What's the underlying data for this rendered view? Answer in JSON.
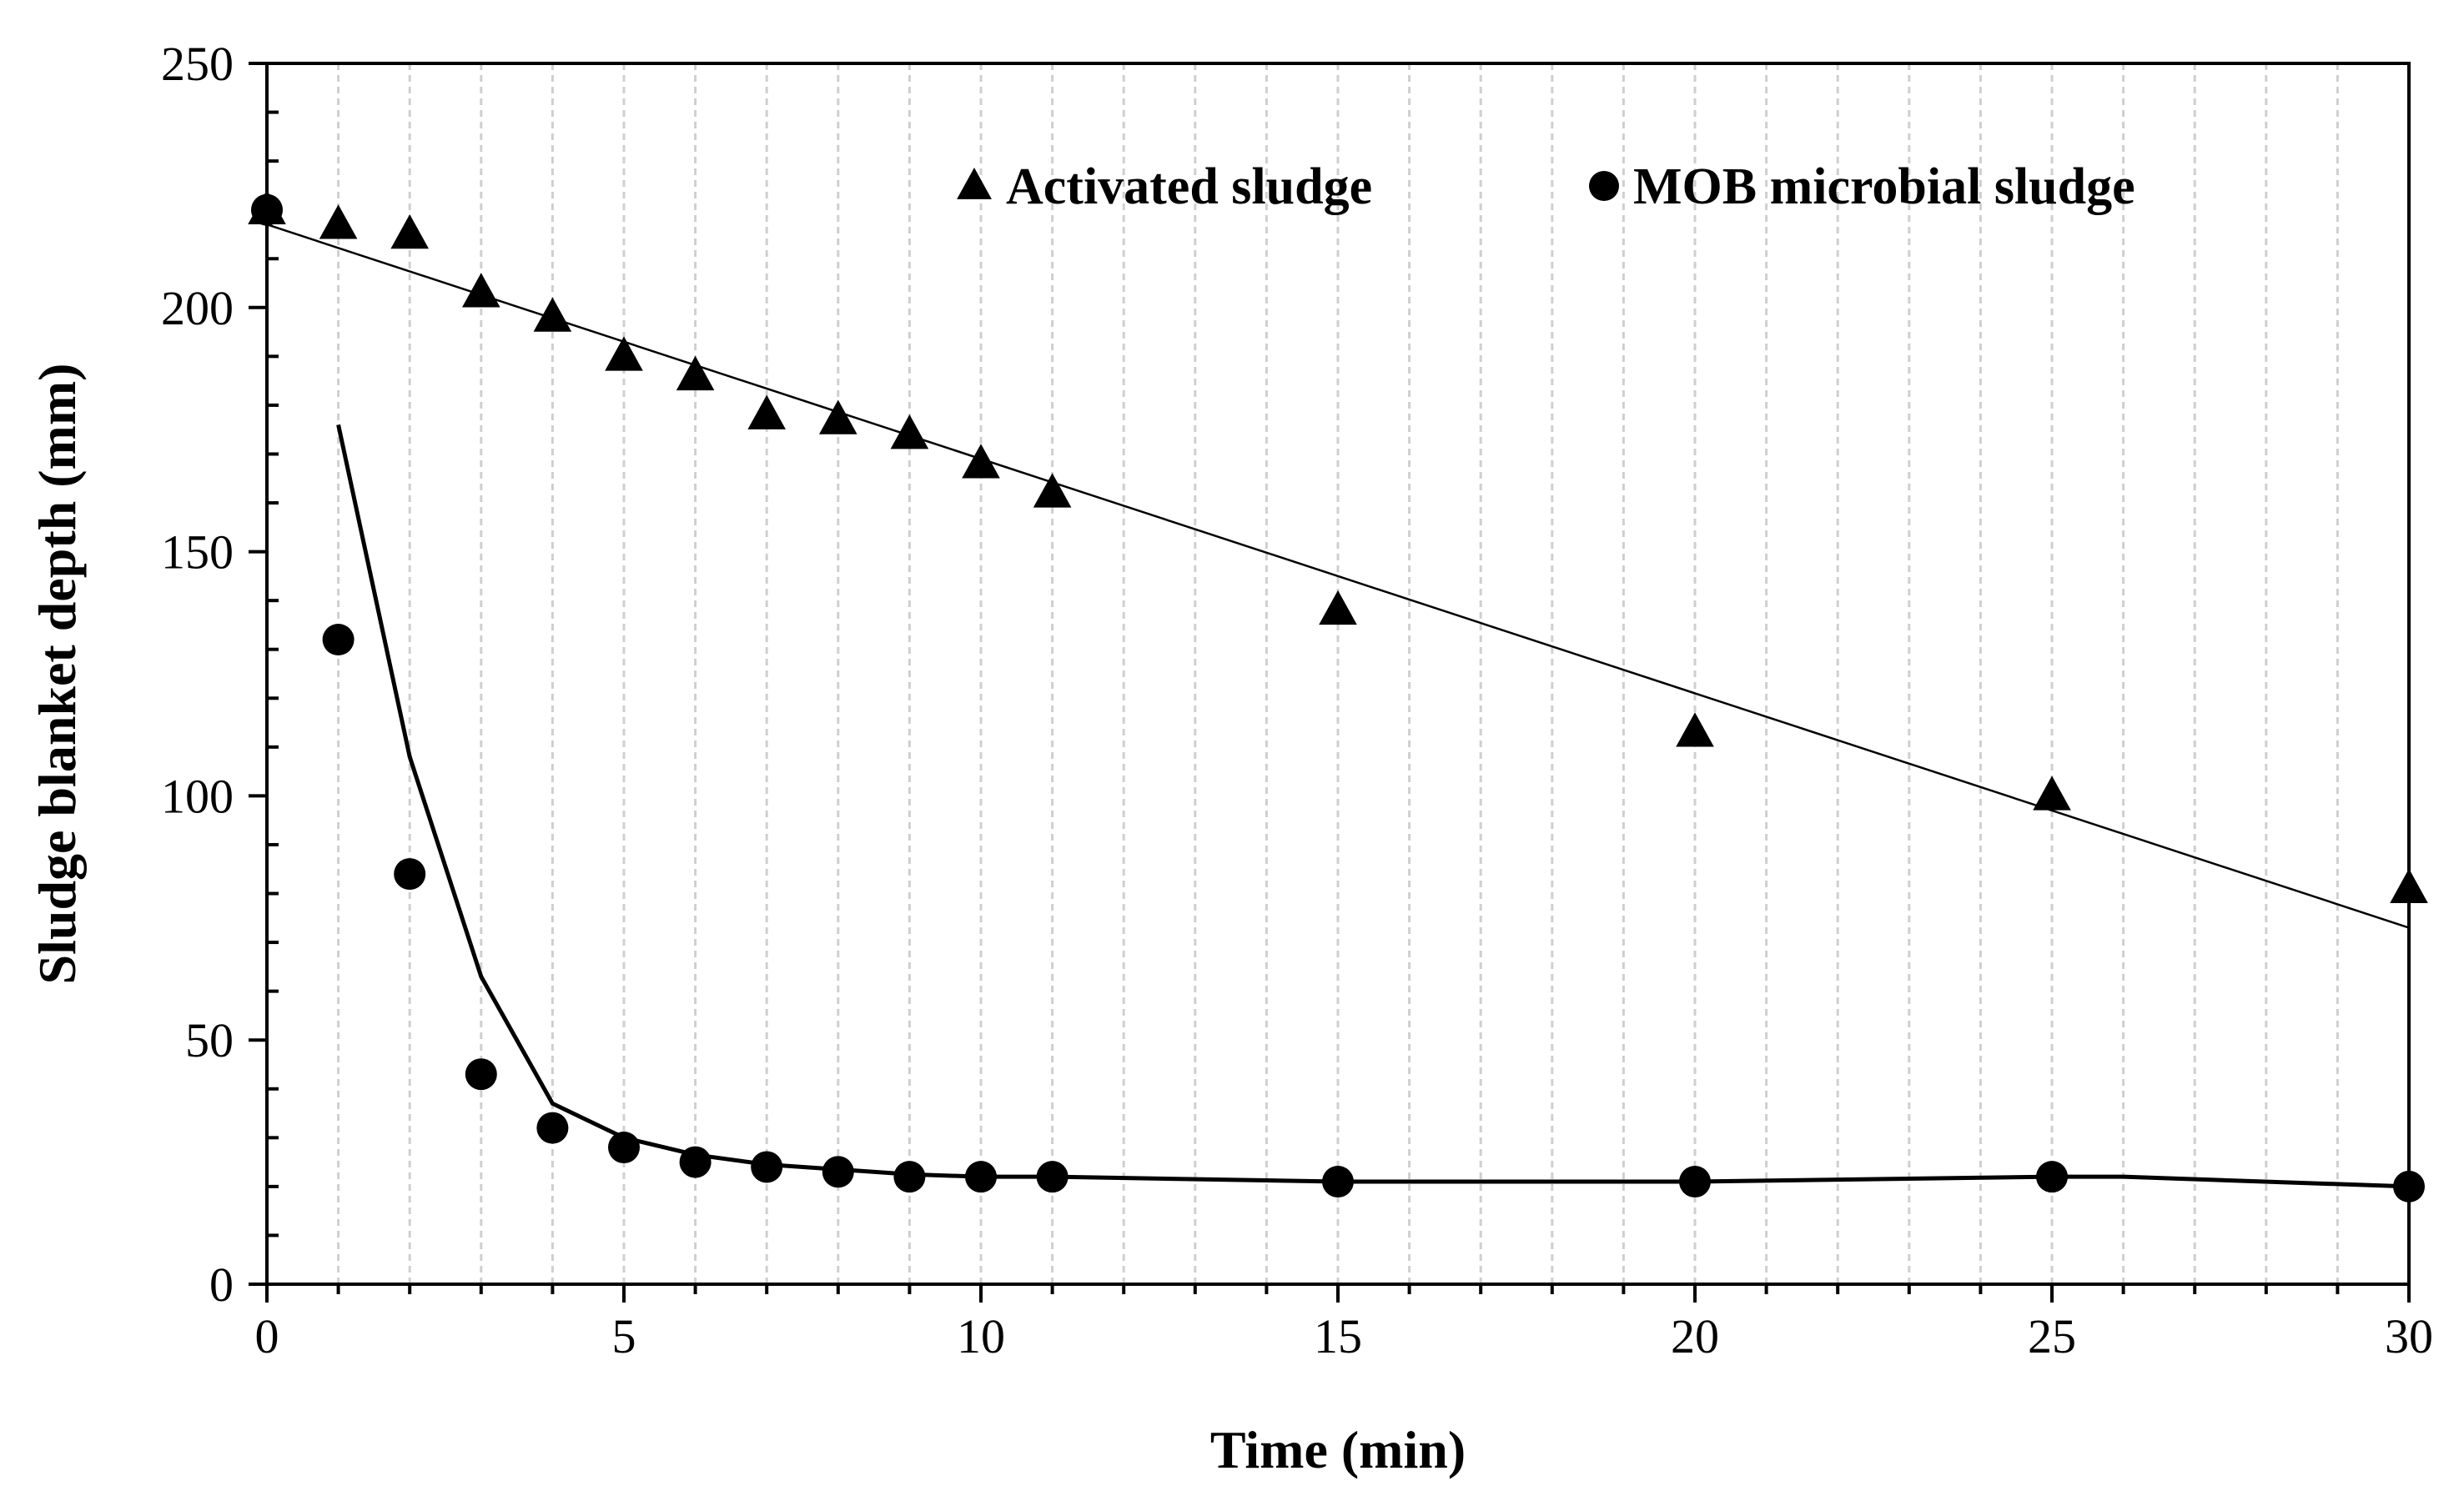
{
  "chart_data": {
    "type": "scatter",
    "title": "",
    "xlabel": "Time (min)",
    "ylabel": "Sludge blanket depth (mm)",
    "xlim": [
      0,
      30
    ],
    "ylim": [
      0,
      250
    ],
    "x_ticks": [
      0,
      5,
      10,
      15,
      20,
      25,
      30
    ],
    "y_ticks": [
      0,
      50,
      100,
      150,
      200,
      250
    ],
    "vertical_grid": "light grey dashed lines at every 1 min",
    "legend_position": "top-right",
    "series": [
      {
        "name": "Activated sludge",
        "marker": "triangle",
        "x": [
          0,
          1,
          2,
          3,
          4,
          5,
          6,
          7,
          8,
          9,
          10,
          11,
          15,
          20,
          25,
          30
        ],
        "y": [
          220,
          217,
          215,
          203,
          198,
          190,
          186,
          178,
          177,
          174,
          168,
          162,
          138,
          113,
          100,
          81
        ]
      },
      {
        "name": "MOB microbial sludge",
        "marker": "circle",
        "x": [
          0,
          1,
          2,
          3,
          4,
          5,
          6,
          7,
          8,
          9,
          10,
          11,
          15,
          20,
          25,
          30
        ],
        "y": [
          220,
          132,
          84,
          43,
          32,
          28,
          25,
          24,
          23,
          22,
          22,
          22,
          21,
          21,
          22,
          20
        ]
      }
    ],
    "trend_lines": [
      {
        "name": "Activated sludge linear fit",
        "x": [
          0,
          30
        ],
        "y": [
          217,
          73
        ]
      },
      {
        "name": "MOB microbial sludge fit",
        "x": [
          1,
          2,
          3,
          4,
          5,
          6,
          7,
          8,
          9,
          10,
          11,
          15,
          20,
          25,
          26,
          30
        ],
        "y": [
          176,
          108,
          63,
          37,
          30,
          26.5,
          24.5,
          23.5,
          22.5,
          22,
          22,
          21,
          21,
          22,
          22,
          20
        ]
      }
    ]
  }
}
